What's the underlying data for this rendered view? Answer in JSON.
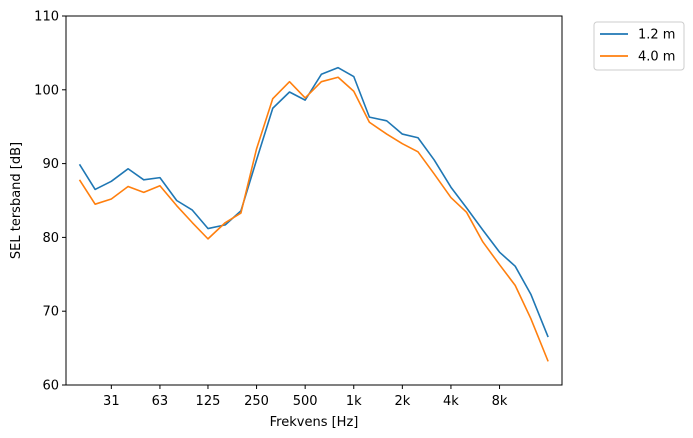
{
  "chart_data": {
    "type": "line",
    "title": "",
    "xlabel": "Frekvens [Hz]",
    "ylabel": "SEL tersband [dB]",
    "ylim": [
      60,
      110
    ],
    "yticks": [
      60,
      70,
      80,
      90,
      100,
      110
    ],
    "xscale": "log",
    "xticks": [
      {
        "value": 31.5,
        "label": "31"
      },
      {
        "value": 63,
        "label": "63"
      },
      {
        "value": 125,
        "label": "125"
      },
      {
        "value": 250,
        "label": "250"
      },
      {
        "value": 500,
        "label": "500"
      },
      {
        "value": 1000,
        "label": "1k"
      },
      {
        "value": 2000,
        "label": "2k"
      },
      {
        "value": 4000,
        "label": "4k"
      },
      {
        "value": 8000,
        "label": "8k"
      }
    ],
    "x": [
      20,
      25,
      31.5,
      40,
      50,
      63,
      80,
      100,
      125,
      160,
      200,
      250,
      315,
      400,
      500,
      630,
      800,
      1000,
      1250,
      1600,
      2000,
      2500,
      3150,
      4000,
      5000,
      6300,
      8000,
      10000,
      12500,
      16000
    ],
    "series": [
      {
        "name": "1.2 m",
        "color": "#1f77b4",
        "values": [
          89.9,
          86.5,
          87.6,
          89.3,
          87.8,
          88.1,
          85.0,
          83.7,
          81.2,
          81.7,
          83.6,
          90.5,
          97.5,
          99.7,
          98.6,
          102.1,
          103.0,
          101.8,
          96.3,
          95.8,
          94.0,
          93.5,
          90.5,
          86.8,
          84.0,
          81.0,
          78.0,
          76.1,
          72.3,
          66.5
        ]
      },
      {
        "name": "4.0 m",
        "color": "#ff7f0e",
        "values": [
          87.8,
          84.5,
          85.2,
          86.9,
          86.1,
          87.0,
          84.3,
          82.0,
          79.8,
          82.0,
          83.3,
          92.0,
          98.8,
          101.1,
          98.9,
          101.1,
          101.7,
          99.8,
          95.6,
          94.0,
          92.7,
          91.6,
          88.6,
          85.4,
          83.4,
          79.4,
          76.3,
          73.5,
          69.0,
          63.2
        ]
      }
    ],
    "grid": false,
    "legend": "outside-top-right"
  }
}
